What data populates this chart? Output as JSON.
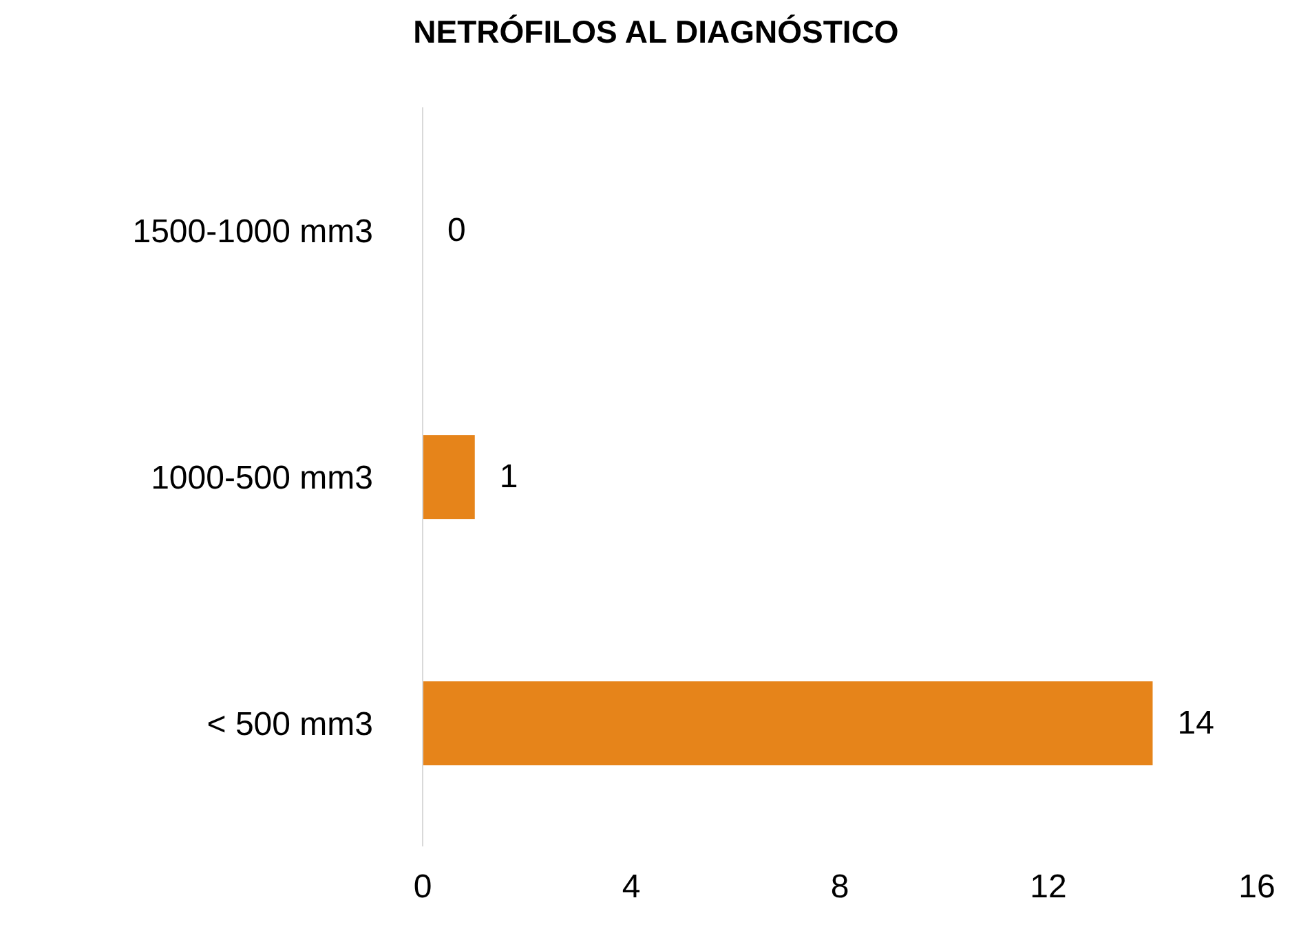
{
  "chart_data": {
    "type": "bar",
    "orientation": "horizontal",
    "title": "NETRÓFILOS AL DIAGNÓSTICO",
    "categories": [
      "1500-1000 mm3",
      "1000-500 mm3",
      "< 500 mm3"
    ],
    "values": [
      0,
      1,
      14
    ],
    "color": "#e6841a",
    "xlim": [
      0,
      16
    ],
    "xticks": [
      0,
      4,
      8,
      12,
      16
    ],
    "grid": false,
    "data_labels": true
  }
}
